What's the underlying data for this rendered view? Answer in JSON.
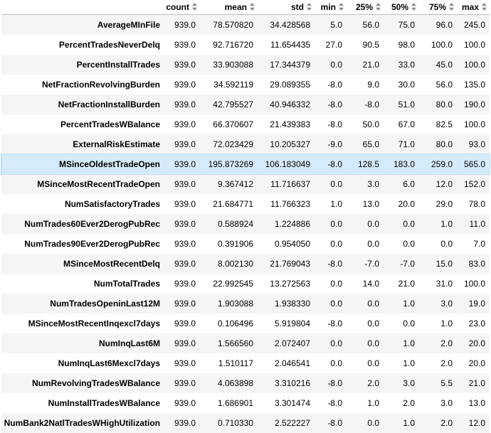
{
  "columns": [
    "count",
    "mean",
    "std",
    "min",
    "25%",
    "50%",
    "75%",
    "max"
  ],
  "rows": [
    {
      "label": "AverageMInFile",
      "values": [
        "939.0",
        "78.570820",
        "34.428568",
        "5.0",
        "56.0",
        "75.0",
        "96.0",
        "245.0"
      ]
    },
    {
      "label": "PercentTradesNeverDelq",
      "values": [
        "939.0",
        "92.716720",
        "11.654435",
        "27.0",
        "90.5",
        "98.0",
        "100.0",
        "100.0"
      ]
    },
    {
      "label": "PercentInstallTrades",
      "values": [
        "939.0",
        "33.903088",
        "17.344379",
        "0.0",
        "21.0",
        "33.0",
        "45.0",
        "100.0"
      ]
    },
    {
      "label": "NetFractionRevolvingBurden",
      "values": [
        "939.0",
        "34.592119",
        "29.089355",
        "-8.0",
        "9.0",
        "30.0",
        "56.0",
        "135.0"
      ]
    },
    {
      "label": "NetFractionInstallBurden",
      "values": [
        "939.0",
        "42.795527",
        "40.946332",
        "-8.0",
        "-8.0",
        "51.0",
        "80.0",
        "190.0"
      ]
    },
    {
      "label": "PercentTradesWBalance",
      "values": [
        "939.0",
        "66.370607",
        "21.439383",
        "-8.0",
        "50.0",
        "67.0",
        "82.5",
        "100.0"
      ]
    },
    {
      "label": "ExternalRiskEstimate",
      "values": [
        "939.0",
        "72.023429",
        "10.205327",
        "-9.0",
        "65.0",
        "71.0",
        "80.0",
        "93.0"
      ]
    },
    {
      "label": "MSinceOldestTradeOpen",
      "values": [
        "939.0",
        "195.873269",
        "106.183049",
        "-8.0",
        "128.5",
        "183.0",
        "259.0",
        "565.0"
      ]
    },
    {
      "label": "MSinceMostRecentTradeOpen",
      "values": [
        "939.0",
        "9.367412",
        "11.716637",
        "0.0",
        "3.0",
        "6.0",
        "12.0",
        "152.0"
      ]
    },
    {
      "label": "NumSatisfactoryTrades",
      "values": [
        "939.0",
        "21.684771",
        "11.766323",
        "1.0",
        "13.0",
        "20.0",
        "29.0",
        "78.0"
      ]
    },
    {
      "label": "NumTrades60Ever2DerogPubRec",
      "values": [
        "939.0",
        "0.588924",
        "1.224886",
        "0.0",
        "0.0",
        "0.0",
        "1.0",
        "11.0"
      ]
    },
    {
      "label": "NumTrades90Ever2DerogPubRec",
      "values": [
        "939.0",
        "0.391906",
        "0.954050",
        "0.0",
        "0.0",
        "0.0",
        "0.0",
        "7.0"
      ]
    },
    {
      "label": "MSinceMostRecentDelq",
      "values": [
        "939.0",
        "8.002130",
        "21.769043",
        "-8.0",
        "-7.0",
        "-7.0",
        "15.0",
        "83.0"
      ]
    },
    {
      "label": "NumTotalTrades",
      "values": [
        "939.0",
        "22.992545",
        "13.272563",
        "0.0",
        "14.0",
        "21.0",
        "31.0",
        "100.0"
      ]
    },
    {
      "label": "NumTradesOpeninLast12M",
      "values": [
        "939.0",
        "1.903088",
        "1.938330",
        "0.0",
        "0.0",
        "1.0",
        "3.0",
        "19.0"
      ]
    },
    {
      "label": "MSinceMostRecentInqexcl7days",
      "values": [
        "939.0",
        "0.106496",
        "5.919804",
        "-8.0",
        "0.0",
        "0.0",
        "1.0",
        "23.0"
      ]
    },
    {
      "label": "NumInqLast6M",
      "values": [
        "939.0",
        "1.566560",
        "2.072407",
        "0.0",
        "0.0",
        "1.0",
        "2.0",
        "20.0"
      ]
    },
    {
      "label": "NumInqLast6Mexcl7days",
      "values": [
        "939.0",
        "1.510117",
        "2.046541",
        "0.0",
        "0.0",
        "1.0",
        "2.0",
        "20.0"
      ]
    },
    {
      "label": "NumRevolvingTradesWBalance",
      "values": [
        "939.0",
        "4.063898",
        "3.310216",
        "-8.0",
        "2.0",
        "3.0",
        "5.5",
        "21.0"
      ]
    },
    {
      "label": "NumInstallTradesWBalance",
      "values": [
        "939.0",
        "1.686901",
        "3.301474",
        "-8.0",
        "1.0",
        "2.0",
        "3.0",
        "13.0"
      ]
    },
    {
      "label": "NumBank2NatlTradesWHighUtilization",
      "values": [
        "939.0",
        "0.710330",
        "2.522227",
        "-8.0",
        "0.0",
        "1.0",
        "2.0",
        "12.0"
      ]
    }
  ],
  "highlighted_row": 7,
  "colors": {
    "highlight": "#d6ebfa",
    "stripe": "#f5f5f5",
    "sort_arrow": "#8a8a8a"
  }
}
